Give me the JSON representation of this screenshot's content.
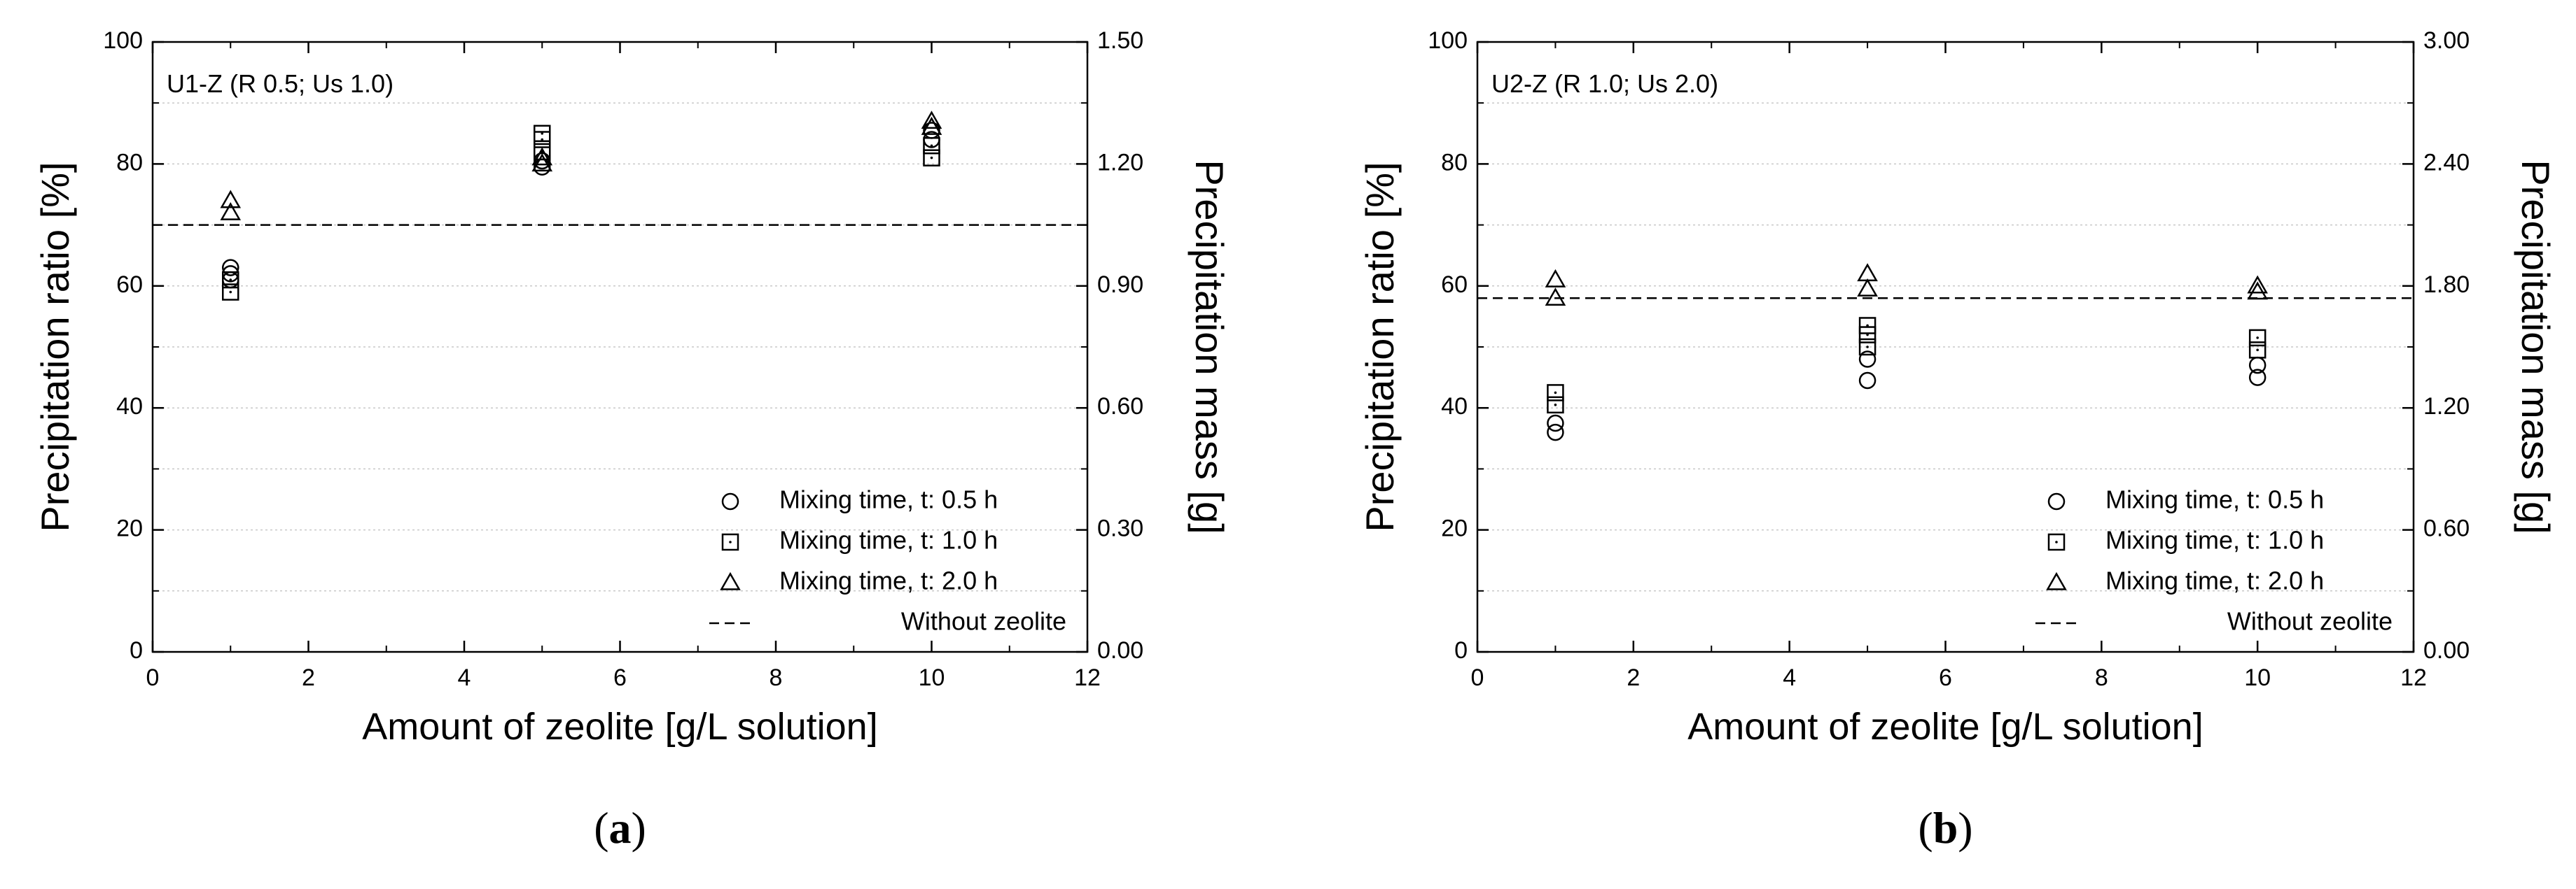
{
  "chart_data": [
    {
      "type": "scatter",
      "panel_label": "a",
      "annotation": "U1-Z (R 0.5; Us 1.0)",
      "xlabel": "Amount of zeolite [g/L solution]",
      "ylabel": "Precipitation ratio [%]",
      "y2label": "Precipitation mass [g]",
      "xlim": [
        0,
        12
      ],
      "ylim": [
        0,
        100
      ],
      "y2lim": [
        0,
        1.5
      ],
      "x_ticks": [
        "0",
        "2",
        "4",
        "6",
        "8",
        "10",
        "12"
      ],
      "y_ticks": [
        "0",
        "20",
        "40",
        "60",
        "80",
        "100"
      ],
      "y2_ticks": [
        "0.00",
        "0.30",
        "0.60",
        "0.90",
        "1.20",
        "1.50"
      ],
      "grid": "dotted horizontal",
      "legend_position": "bottom-right",
      "series": [
        {
          "name": "Mixing time, t: 0.5 h",
          "marker": "circle",
          "points": [
            [
              1,
              61
            ],
            [
              1,
              62
            ],
            [
              1,
              63
            ],
            [
              5,
              79.5
            ],
            [
              5,
              80.5
            ],
            [
              10,
              84
            ],
            [
              10,
              85.5
            ]
          ]
        },
        {
          "name": "Mixing time, t: 1.0 h",
          "marker": "square",
          "points": [
            [
              1,
              59
            ],
            [
              1,
              61
            ],
            [
              5,
              82
            ],
            [
              5,
              84
            ],
            [
              5,
              85
            ],
            [
              10,
              81
            ],
            [
              10,
              83
            ]
          ]
        },
        {
          "name": "Mixing time, t: 2.0 h",
          "marker": "triangle",
          "points": [
            [
              1,
              72
            ],
            [
              1,
              74
            ],
            [
              5,
              80
            ],
            [
              5,
              81
            ],
            [
              10,
              86
            ],
            [
              10,
              87
            ]
          ]
        },
        {
          "name": "Without zeolite",
          "marker": "dashed-line",
          "y": 70
        }
      ]
    },
    {
      "type": "scatter",
      "panel_label": "b",
      "annotation": "U2-Z (R 1.0; Us 2.0)",
      "xlabel": "Amount of zeolite [g/L solution]",
      "ylabel": "Precipitation ratio [%]",
      "y2label": "Precipitation mass [g]",
      "xlim": [
        0,
        12
      ],
      "ylim": [
        0,
        100
      ],
      "y2lim": [
        0,
        3.0
      ],
      "x_ticks": [
        "0",
        "2",
        "4",
        "6",
        "8",
        "10",
        "12"
      ],
      "y_ticks": [
        "0",
        "20",
        "40",
        "60",
        "80",
        "100"
      ],
      "y2_ticks": [
        "0.00",
        "0.60",
        "1.20",
        "1.80",
        "2.40",
        "3.00"
      ],
      "grid": "dotted horizontal",
      "legend_position": "bottom-right",
      "series": [
        {
          "name": "Mixing time, t: 0.5 h",
          "marker": "circle",
          "points": [
            [
              1,
              36
            ],
            [
              1,
              37.5
            ],
            [
              5,
              44.5
            ],
            [
              5,
              48
            ],
            [
              10,
              45
            ],
            [
              10,
              47
            ]
          ]
        },
        {
          "name": "Mixing time, t: 1.0 h",
          "marker": "square",
          "points": [
            [
              1,
              40.5
            ],
            [
              1,
              42.5
            ],
            [
              5,
              50
            ],
            [
              5,
              52
            ],
            [
              5,
              53.5
            ],
            [
              10,
              49.5
            ],
            [
              10,
              51.5
            ]
          ]
        },
        {
          "name": "Mixing time, t: 2.0 h",
          "marker": "triangle",
          "points": [
            [
              1,
              58
            ],
            [
              1,
              61
            ],
            [
              5,
              59.5
            ],
            [
              5,
              62
            ],
            [
              10,
              59
            ],
            [
              10,
              60
            ]
          ]
        },
        {
          "name": "Without zeolite",
          "marker": "dashed-line",
          "y": 58
        }
      ]
    }
  ]
}
